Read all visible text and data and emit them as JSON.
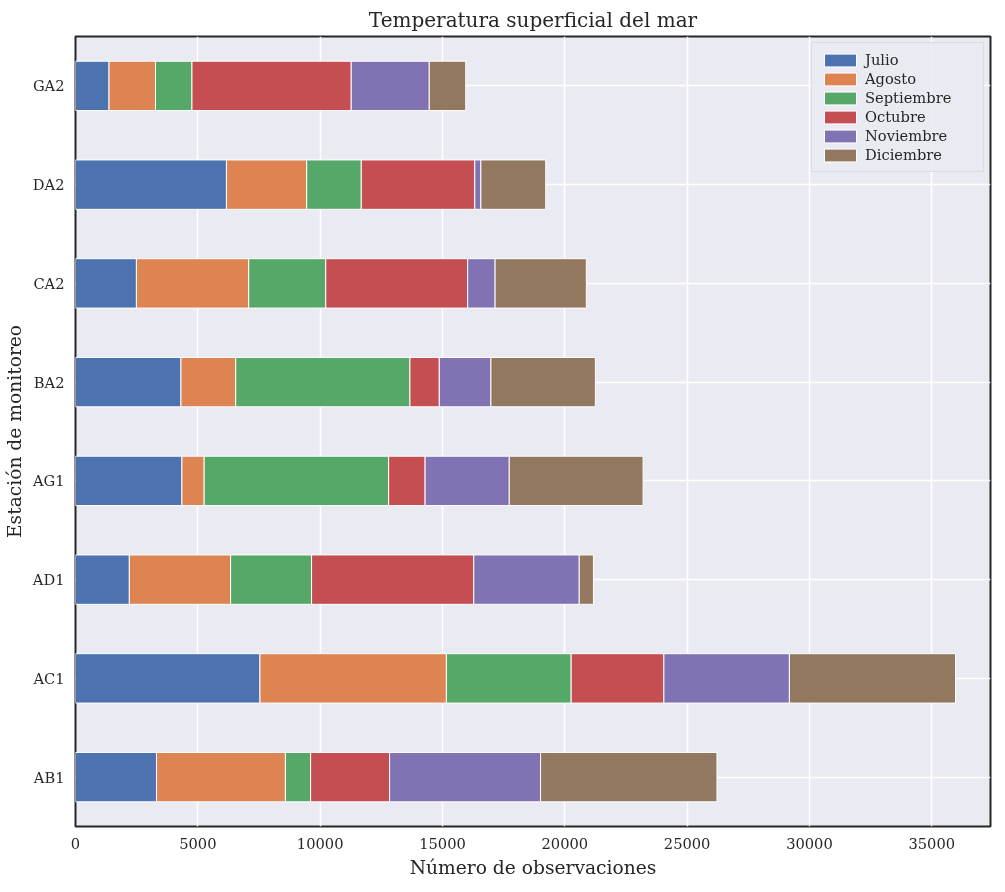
{
  "chart_data": {
    "type": "bar",
    "orientation": "horizontal",
    "stacked": true,
    "title": "Temperatura superficial del mar",
    "xlabel": "Número de observaciones",
    "ylabel": "Estación de monitoreo",
    "categories": [
      "GA2",
      "DA2",
      "CA2",
      "BA2",
      "AG1",
      "AD1",
      "AC1",
      "AB1"
    ],
    "series": [
      {
        "name": "Julio",
        "color": "#4c72b0",
        "values": [
          1370,
          6170,
          2490,
          4310,
          4350,
          2200,
          7540,
          3310
        ]
      },
      {
        "name": "Agosto",
        "color": "#dd8452",
        "values": [
          1900,
          3280,
          4590,
          2240,
          910,
          4140,
          7620,
          5270
        ]
      },
      {
        "name": "Septiembre",
        "color": "#55a868",
        "values": [
          1490,
          2230,
          3150,
          7120,
          7540,
          3310,
          5100,
          1030
        ]
      },
      {
        "name": "Octubre",
        "color": "#c44e52",
        "values": [
          6510,
          4640,
          5800,
          1200,
          1490,
          6630,
          3790,
          3230
        ]
      },
      {
        "name": "Noviembre",
        "color": "#8172b3",
        "values": [
          3190,
          250,
          1120,
          2110,
          3440,
          4310,
          5130,
          6170
        ]
      },
      {
        "name": "Diciembre",
        "color": "#937860",
        "values": [
          1490,
          2650,
          3730,
          4270,
          5470,
          580,
          6790,
          7210
        ]
      }
    ],
    "xlim": [
      0,
      37400
    ],
    "xticks": [
      0,
      5000,
      10000,
      15000,
      20000,
      25000,
      30000,
      35000
    ],
    "grid": true,
    "legend": "top right"
  }
}
